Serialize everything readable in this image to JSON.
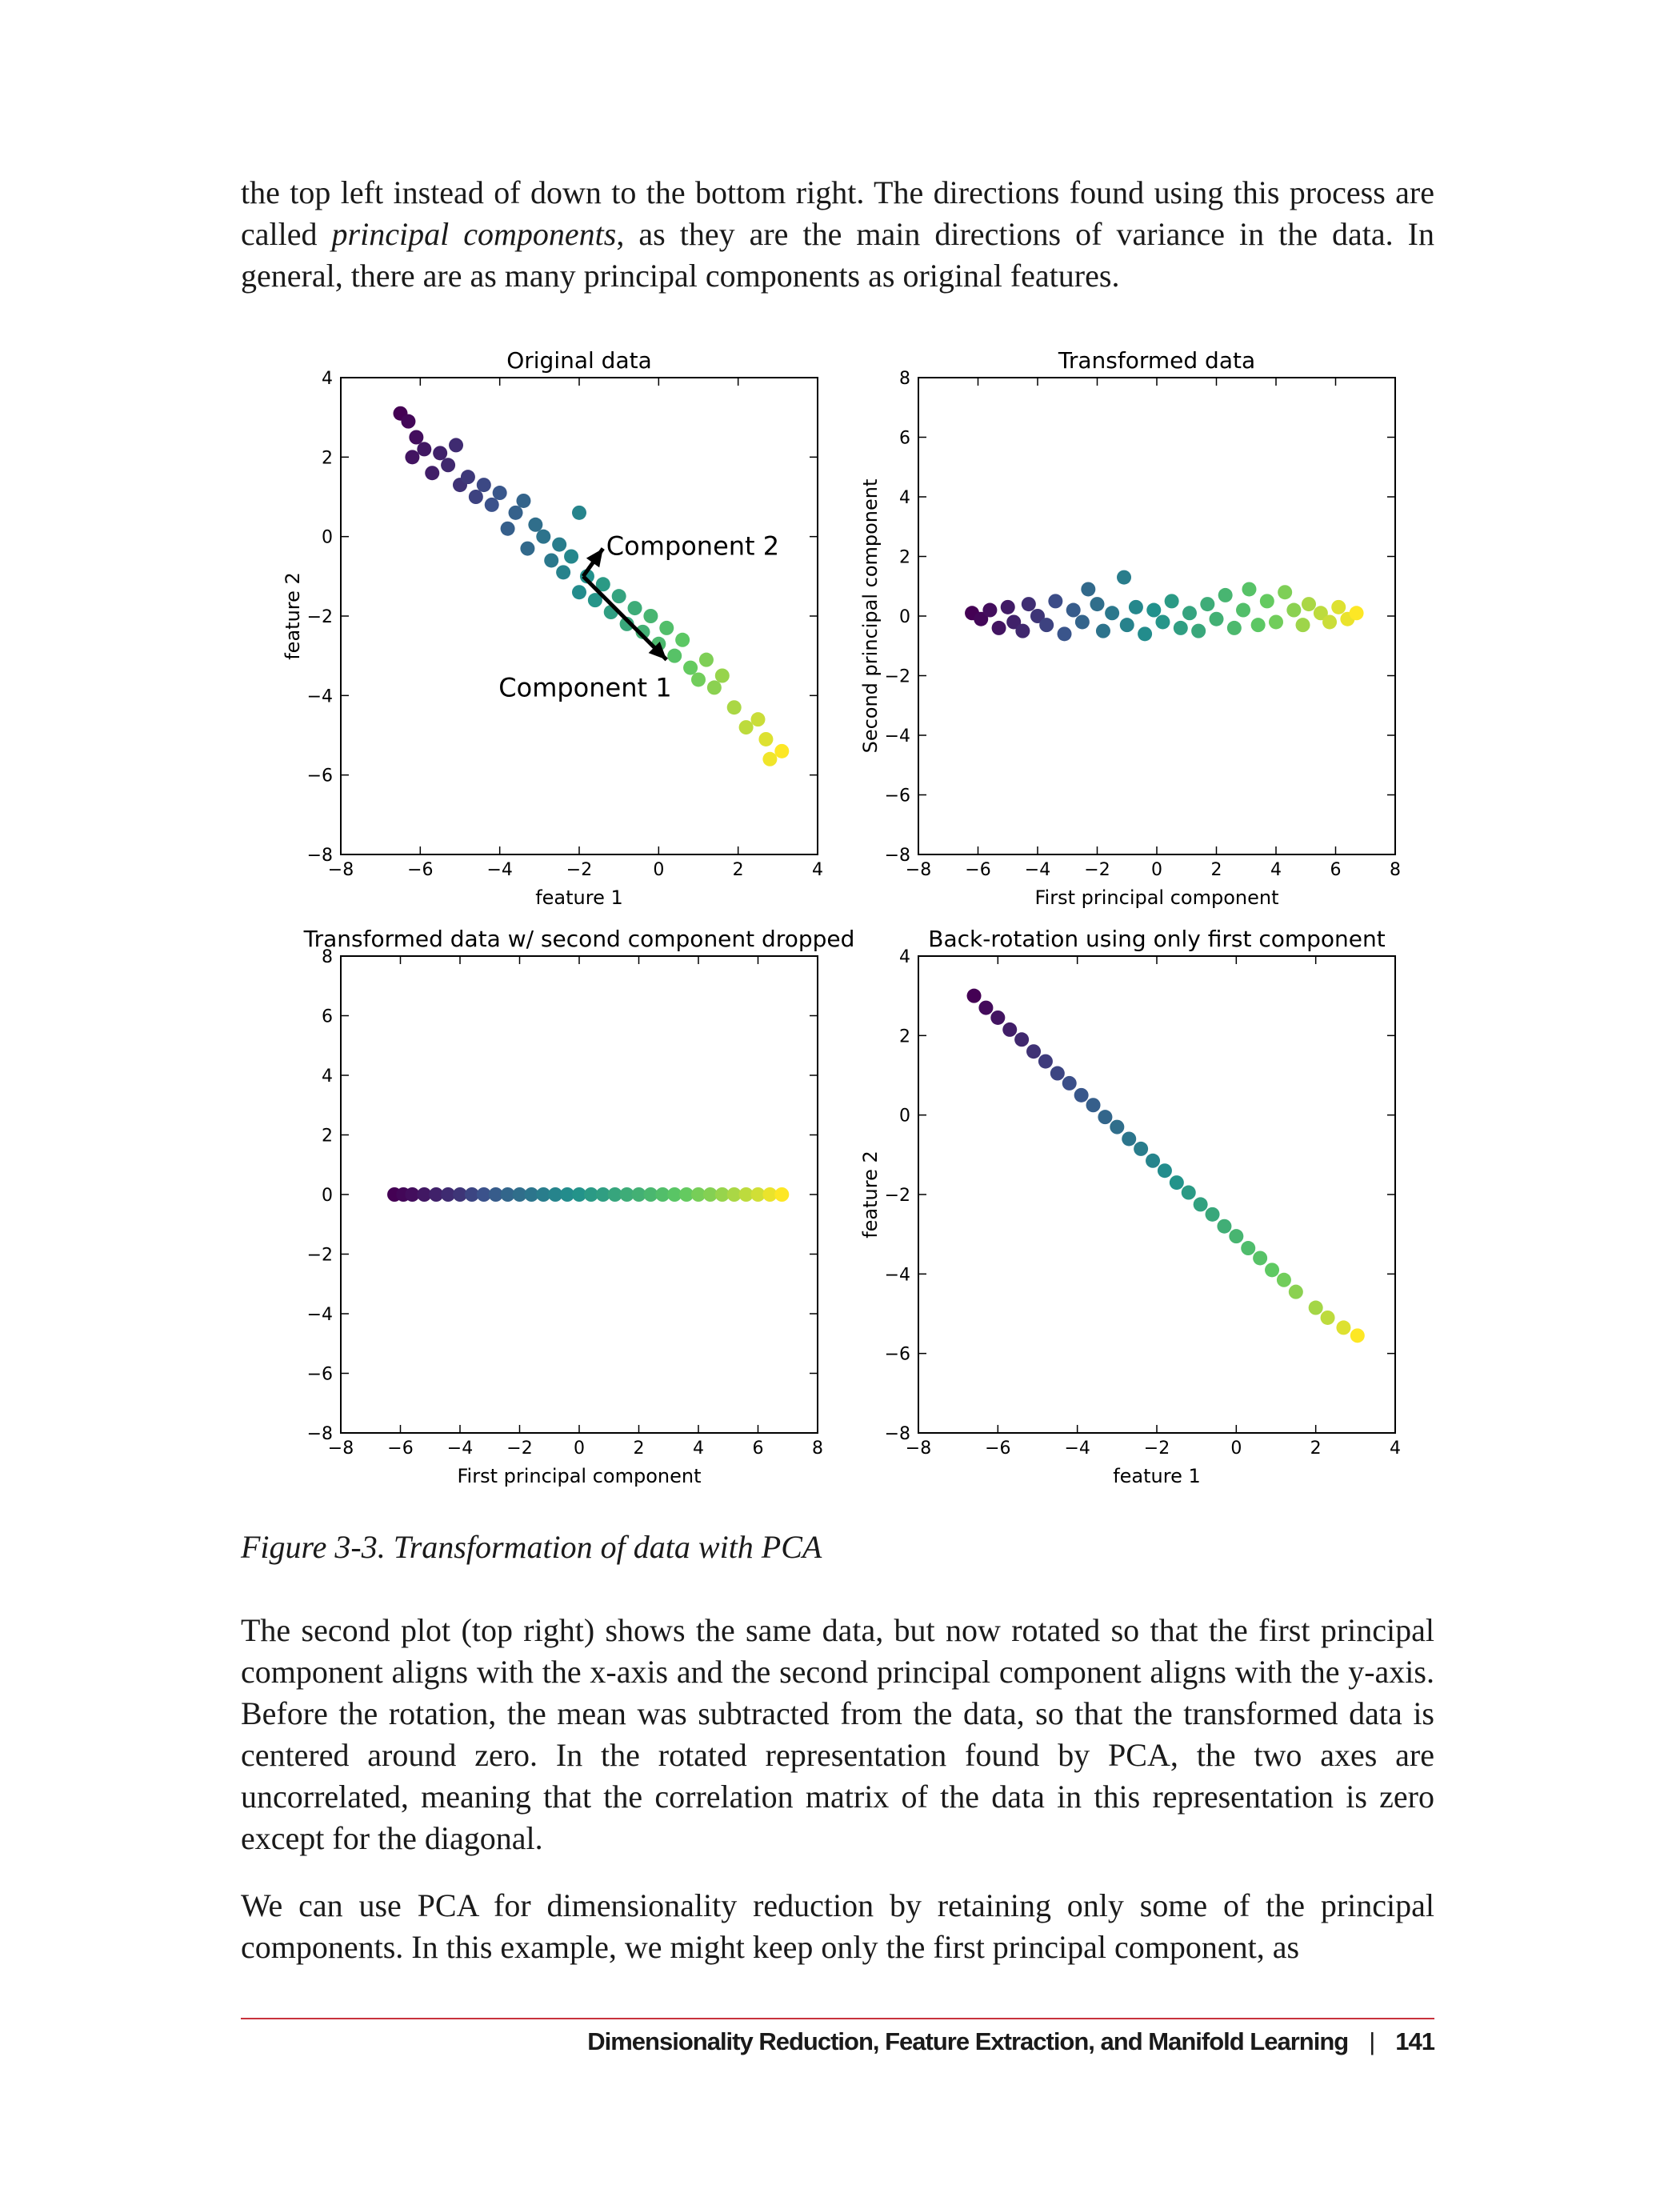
{
  "body": {
    "p1": {
      "before": "the top left instead of down to the bottom right. The directions found using this process are called ",
      "emph": "principal components",
      "after": ", as they are the main directions of variance in the data. In general, there are as many principal components as original features."
    },
    "p2": "The second plot (top right) shows the same data, but now rotated so that the first principal component aligns with the x-axis and the second principal component aligns with the y-axis. Before the rotation, the mean was subtracted from the data, so that the transformed data is centered around zero. In the rotated representation found by PCA, the two axes are uncorrelated, meaning that the correlation matrix of the data in this representation is zero except for the diagonal.",
    "p3": "We can use PCA for dimensionality reduction by retaining only some of the principal components. In this example, we might keep only the first principal component, as"
  },
  "figure": {
    "caption": "Figure 3-3. Transformation of data with PCA"
  },
  "footer": {
    "section": "Dimensionality Reduction, Feature Extraction, and Manifold Learning",
    "separator": "|",
    "page_number": "141"
  },
  "chart_data": [
    {
      "type": "scatter",
      "title": "Original data",
      "xlabel": "feature 1",
      "ylabel": "feature 2",
      "xlim": [
        -8,
        4
      ],
      "ylim": [
        -8,
        4
      ],
      "xticks": [
        -8,
        -6,
        -4,
        -2,
        0,
        2,
        4
      ],
      "yticks": [
        -8,
        -6,
        -4,
        -2,
        0,
        2,
        4
      ],
      "grid": false,
      "colormap": "viridis",
      "arrows": [
        {
          "label": "Component 1",
          "from": [
            -1.9,
            -1.0
          ],
          "to": [
            0.2,
            -3.1
          ]
        },
        {
          "label": "Component 2",
          "from": [
            -1.9,
            -1.0
          ],
          "to": [
            -1.4,
            -0.3
          ]
        }
      ],
      "points": [
        {
          "x": -6.5,
          "y": 3.1,
          "c": 0.0
        },
        {
          "x": -6.3,
          "y": 2.9,
          "c": 0.02
        },
        {
          "x": -6.1,
          "y": 2.5,
          "c": 0.04
        },
        {
          "x": -6.2,
          "y": 2.0,
          "c": 0.06
        },
        {
          "x": -5.9,
          "y": 2.2,
          "c": 0.07
        },
        {
          "x": -5.7,
          "y": 1.6,
          "c": 0.09
        },
        {
          "x": -5.5,
          "y": 2.1,
          "c": 0.1
        },
        {
          "x": -5.3,
          "y": 1.8,
          "c": 0.12
        },
        {
          "x": -5.1,
          "y": 2.3,
          "c": 0.13
        },
        {
          "x": -5.0,
          "y": 1.3,
          "c": 0.15
        },
        {
          "x": -4.8,
          "y": 1.5,
          "c": 0.17
        },
        {
          "x": -4.6,
          "y": 1.0,
          "c": 0.2
        },
        {
          "x": -4.4,
          "y": 1.3,
          "c": 0.22
        },
        {
          "x": -4.2,
          "y": 0.8,
          "c": 0.25
        },
        {
          "x": -4.0,
          "y": 1.1,
          "c": 0.27
        },
        {
          "x": -3.8,
          "y": 0.2,
          "c": 0.3
        },
        {
          "x": -3.6,
          "y": 0.6,
          "c": 0.31
        },
        {
          "x": -3.4,
          "y": 0.9,
          "c": 0.32
        },
        {
          "x": -3.3,
          "y": -0.3,
          "c": 0.34
        },
        {
          "x": -3.1,
          "y": 0.3,
          "c": 0.36
        },
        {
          "x": -2.9,
          "y": 0.0,
          "c": 0.38
        },
        {
          "x": -2.7,
          "y": -0.6,
          "c": 0.4
        },
        {
          "x": -2.5,
          "y": -0.2,
          "c": 0.42
        },
        {
          "x": -2.4,
          "y": -0.9,
          "c": 0.44
        },
        {
          "x": -2.0,
          "y": 0.6,
          "c": 0.45
        },
        {
          "x": -2.2,
          "y": -0.5,
          "c": 0.46
        },
        {
          "x": -2.0,
          "y": -1.4,
          "c": 0.48
        },
        {
          "x": -1.8,
          "y": -1.0,
          "c": 0.5
        },
        {
          "x": -1.6,
          "y": -1.6,
          "c": 0.52
        },
        {
          "x": -1.4,
          "y": -1.2,
          "c": 0.54
        },
        {
          "x": -1.2,
          "y": -1.9,
          "c": 0.56
        },
        {
          "x": -1.0,
          "y": -1.5,
          "c": 0.58
        },
        {
          "x": -0.8,
          "y": -2.2,
          "c": 0.6
        },
        {
          "x": -0.6,
          "y": -1.8,
          "c": 0.62
        },
        {
          "x": -0.4,
          "y": -2.4,
          "c": 0.64
        },
        {
          "x": -0.2,
          "y": -2.0,
          "c": 0.66
        },
        {
          "x": 0.0,
          "y": -2.7,
          "c": 0.68
        },
        {
          "x": 0.2,
          "y": -2.3,
          "c": 0.7
        },
        {
          "x": 0.4,
          "y": -3.0,
          "c": 0.72
        },
        {
          "x": 0.6,
          "y": -2.6,
          "c": 0.74
        },
        {
          "x": 0.8,
          "y": -3.3,
          "c": 0.76
        },
        {
          "x": 1.0,
          "y": -3.6,
          "c": 0.78
        },
        {
          "x": 1.2,
          "y": -3.1,
          "c": 0.8
        },
        {
          "x": 1.4,
          "y": -3.8,
          "c": 0.82
        },
        {
          "x": 1.6,
          "y": -3.5,
          "c": 0.84
        },
        {
          "x": 1.9,
          "y": -4.3,
          "c": 0.87
        },
        {
          "x": 2.2,
          "y": -4.8,
          "c": 0.9
        },
        {
          "x": 2.5,
          "y": -4.6,
          "c": 0.92
        },
        {
          "x": 2.7,
          "y": -5.1,
          "c": 0.95
        },
        {
          "x": 2.8,
          "y": -5.6,
          "c": 0.98
        },
        {
          "x": 3.1,
          "y": -5.4,
          "c": 1.0
        }
      ]
    },
    {
      "type": "scatter",
      "title": "Transformed data",
      "xlabel": "First principal component",
      "ylabel": "Second principal component",
      "xlim": [
        -8,
        8
      ],
      "ylim": [
        -8,
        8
      ],
      "xticks": [
        -8,
        -6,
        -4,
        -2,
        0,
        2,
        4,
        6,
        8
      ],
      "yticks": [
        -8,
        -6,
        -4,
        -2,
        0,
        2,
        4,
        6,
        8
      ],
      "grid": false,
      "colormap": "viridis",
      "points": [
        {
          "x": -6.2,
          "y": 0.1,
          "c": 0.0
        },
        {
          "x": -5.9,
          "y": -0.1,
          "c": 0.02
        },
        {
          "x": -5.6,
          "y": 0.2,
          "c": 0.04
        },
        {
          "x": -5.3,
          "y": -0.4,
          "c": 0.06
        },
        {
          "x": -5.0,
          "y": 0.3,
          "c": 0.08
        },
        {
          "x": -4.8,
          "y": -0.2,
          "c": 0.1
        },
        {
          "x": -4.5,
          "y": -0.5,
          "c": 0.12
        },
        {
          "x": -4.3,
          "y": 0.4,
          "c": 0.14
        },
        {
          "x": -4.0,
          "y": 0.0,
          "c": 0.16
        },
        {
          "x": -3.7,
          "y": -0.3,
          "c": 0.2
        },
        {
          "x": -3.4,
          "y": 0.5,
          "c": 0.23
        },
        {
          "x": -3.1,
          "y": -0.6,
          "c": 0.26
        },
        {
          "x": -2.8,
          "y": 0.2,
          "c": 0.29
        },
        {
          "x": -2.5,
          "y": -0.2,
          "c": 0.32
        },
        {
          "x": -2.3,
          "y": 0.9,
          "c": 0.34
        },
        {
          "x": -2.0,
          "y": 0.4,
          "c": 0.36
        },
        {
          "x": -1.8,
          "y": -0.5,
          "c": 0.38
        },
        {
          "x": -1.5,
          "y": 0.1,
          "c": 0.4
        },
        {
          "x": -1.1,
          "y": 1.3,
          "c": 0.42
        },
        {
          "x": -1.0,
          "y": -0.3,
          "c": 0.44
        },
        {
          "x": -0.7,
          "y": 0.3,
          "c": 0.46
        },
        {
          "x": -0.4,
          "y": -0.6,
          "c": 0.48
        },
        {
          "x": -0.1,
          "y": 0.2,
          "c": 0.5
        },
        {
          "x": 0.2,
          "y": -0.2,
          "c": 0.52
        },
        {
          "x": 0.5,
          "y": 0.5,
          "c": 0.54
        },
        {
          "x": 0.8,
          "y": -0.4,
          "c": 0.56
        },
        {
          "x": 1.1,
          "y": 0.1,
          "c": 0.58
        },
        {
          "x": 1.4,
          "y": -0.5,
          "c": 0.6
        },
        {
          "x": 1.7,
          "y": 0.4,
          "c": 0.62
        },
        {
          "x": 2.0,
          "y": -0.1,
          "c": 0.64
        },
        {
          "x": 2.3,
          "y": 0.7,
          "c": 0.66
        },
        {
          "x": 2.6,
          "y": -0.4,
          "c": 0.68
        },
        {
          "x": 2.9,
          "y": 0.2,
          "c": 0.7
        },
        {
          "x": 3.1,
          "y": 0.9,
          "c": 0.72
        },
        {
          "x": 3.4,
          "y": -0.3,
          "c": 0.74
        },
        {
          "x": 3.7,
          "y": 0.5,
          "c": 0.76
        },
        {
          "x": 4.0,
          "y": -0.2,
          "c": 0.78
        },
        {
          "x": 4.3,
          "y": 0.8,
          "c": 0.8
        },
        {
          "x": 4.6,
          "y": 0.2,
          "c": 0.82
        },
        {
          "x": 4.9,
          "y": -0.3,
          "c": 0.85
        },
        {
          "x": 5.1,
          "y": 0.4,
          "c": 0.87
        },
        {
          "x": 5.5,
          "y": 0.1,
          "c": 0.9
        },
        {
          "x": 5.8,
          "y": -0.2,
          "c": 0.92
        },
        {
          "x": 6.1,
          "y": 0.3,
          "c": 0.95
        },
        {
          "x": 6.4,
          "y": -0.1,
          "c": 0.97
        },
        {
          "x": 6.7,
          "y": 0.1,
          "c": 1.0
        }
      ]
    },
    {
      "type": "scatter",
      "title": "Transformed data w/ second component dropped",
      "xlabel": "First principal component",
      "ylabel": "",
      "xlim": [
        -8,
        8
      ],
      "ylim": [
        -8,
        8
      ],
      "xticks": [
        -8,
        -6,
        -4,
        -2,
        0,
        2,
        4,
        6,
        8
      ],
      "yticks": [
        -8,
        -6,
        -4,
        -2,
        0,
        2,
        4,
        6,
        8
      ],
      "grid": false,
      "colormap": "viridis",
      "points": [
        {
          "x": -6.2,
          "y": 0,
          "c": 0.0
        },
        {
          "x": -5.9,
          "y": 0,
          "c": 0.02
        },
        {
          "x": -5.6,
          "y": 0,
          "c": 0.04
        },
        {
          "x": -5.2,
          "y": 0,
          "c": 0.07
        },
        {
          "x": -4.8,
          "y": 0,
          "c": 0.1
        },
        {
          "x": -4.4,
          "y": 0,
          "c": 0.13
        },
        {
          "x": -4.0,
          "y": 0,
          "c": 0.16
        },
        {
          "x": -3.6,
          "y": 0,
          "c": 0.21
        },
        {
          "x": -3.2,
          "y": 0,
          "c": 0.25
        },
        {
          "x": -2.8,
          "y": 0,
          "c": 0.29
        },
        {
          "x": -2.4,
          "y": 0,
          "c": 0.33
        },
        {
          "x": -2.0,
          "y": 0,
          "c": 0.36
        },
        {
          "x": -1.6,
          "y": 0,
          "c": 0.39
        },
        {
          "x": -1.2,
          "y": 0,
          "c": 0.42
        },
        {
          "x": -0.8,
          "y": 0,
          "c": 0.45
        },
        {
          "x": -0.4,
          "y": 0,
          "c": 0.48
        },
        {
          "x": 0.0,
          "y": 0,
          "c": 0.51
        },
        {
          "x": 0.4,
          "y": 0,
          "c": 0.54
        },
        {
          "x": 0.8,
          "y": 0,
          "c": 0.56
        },
        {
          "x": 1.2,
          "y": 0,
          "c": 0.59
        },
        {
          "x": 1.6,
          "y": 0,
          "c": 0.62
        },
        {
          "x": 2.0,
          "y": 0,
          "c": 0.64
        },
        {
          "x": 2.4,
          "y": 0,
          "c": 0.67
        },
        {
          "x": 2.8,
          "y": 0,
          "c": 0.7
        },
        {
          "x": 3.2,
          "y": 0,
          "c": 0.73
        },
        {
          "x": 3.6,
          "y": 0,
          "c": 0.76
        },
        {
          "x": 4.0,
          "y": 0,
          "c": 0.79
        },
        {
          "x": 4.4,
          "y": 0,
          "c": 0.81
        },
        {
          "x": 4.8,
          "y": 0,
          "c": 0.84
        },
        {
          "x": 5.2,
          "y": 0,
          "c": 0.87
        },
        {
          "x": 5.6,
          "y": 0,
          "c": 0.9
        },
        {
          "x": 6.0,
          "y": 0,
          "c": 0.93
        },
        {
          "x": 6.4,
          "y": 0,
          "c": 0.97
        },
        {
          "x": 6.8,
          "y": 0,
          "c": 1.0
        }
      ]
    },
    {
      "type": "scatter",
      "title": "Back-rotation using only first component",
      "xlabel": "feature 1",
      "ylabel": "feature 2",
      "xlim": [
        -8,
        4
      ],
      "ylim": [
        -8,
        4
      ],
      "xticks": [
        -8,
        -6,
        -4,
        -2,
        0,
        2,
        4
      ],
      "yticks": [
        -8,
        -6,
        -4,
        -2,
        0,
        2,
        4
      ],
      "grid": false,
      "colormap": "viridis",
      "points": [
        {
          "x": -6.6,
          "y": 3.0,
          "c": 0.0
        },
        {
          "x": -6.3,
          "y": 2.7,
          "c": 0.03
        },
        {
          "x": -6.0,
          "y": 2.45,
          "c": 0.06
        },
        {
          "x": -5.7,
          "y": 2.15,
          "c": 0.09
        },
        {
          "x": -5.4,
          "y": 1.9,
          "c": 0.12
        },
        {
          "x": -5.1,
          "y": 1.6,
          "c": 0.15
        },
        {
          "x": -4.8,
          "y": 1.35,
          "c": 0.18
        },
        {
          "x": -4.5,
          "y": 1.05,
          "c": 0.21
        },
        {
          "x": -4.2,
          "y": 0.8,
          "c": 0.24
        },
        {
          "x": -3.9,
          "y": 0.5,
          "c": 0.27
        },
        {
          "x": -3.6,
          "y": 0.25,
          "c": 0.3
        },
        {
          "x": -3.3,
          "y": -0.05,
          "c": 0.33
        },
        {
          "x": -3.0,
          "y": -0.3,
          "c": 0.36
        },
        {
          "x": -2.7,
          "y": -0.6,
          "c": 0.39
        },
        {
          "x": -2.4,
          "y": -0.85,
          "c": 0.42
        },
        {
          "x": -2.1,
          "y": -1.15,
          "c": 0.45
        },
        {
          "x": -1.8,
          "y": -1.4,
          "c": 0.48
        },
        {
          "x": -1.5,
          "y": -1.7,
          "c": 0.51
        },
        {
          "x": -1.2,
          "y": -1.95,
          "c": 0.54
        },
        {
          "x": -0.9,
          "y": -2.25,
          "c": 0.57
        },
        {
          "x": -0.6,
          "y": -2.5,
          "c": 0.6
        },
        {
          "x": -0.3,
          "y": -2.8,
          "c": 0.63
        },
        {
          "x": 0.0,
          "y": -3.05,
          "c": 0.66
        },
        {
          "x": 0.3,
          "y": -3.35,
          "c": 0.69
        },
        {
          "x": 0.6,
          "y": -3.6,
          "c": 0.72
        },
        {
          "x": 0.9,
          "y": -3.9,
          "c": 0.75
        },
        {
          "x": 1.2,
          "y": -4.15,
          "c": 0.78
        },
        {
          "x": 1.5,
          "y": -4.45,
          "c": 0.82
        },
        {
          "x": 2.0,
          "y": -4.85,
          "c": 0.86
        },
        {
          "x": 2.3,
          "y": -5.1,
          "c": 0.9
        },
        {
          "x": 2.7,
          "y": -5.35,
          "c": 0.95
        },
        {
          "x": 3.05,
          "y": -5.55,
          "c": 1.0
        }
      ]
    }
  ]
}
